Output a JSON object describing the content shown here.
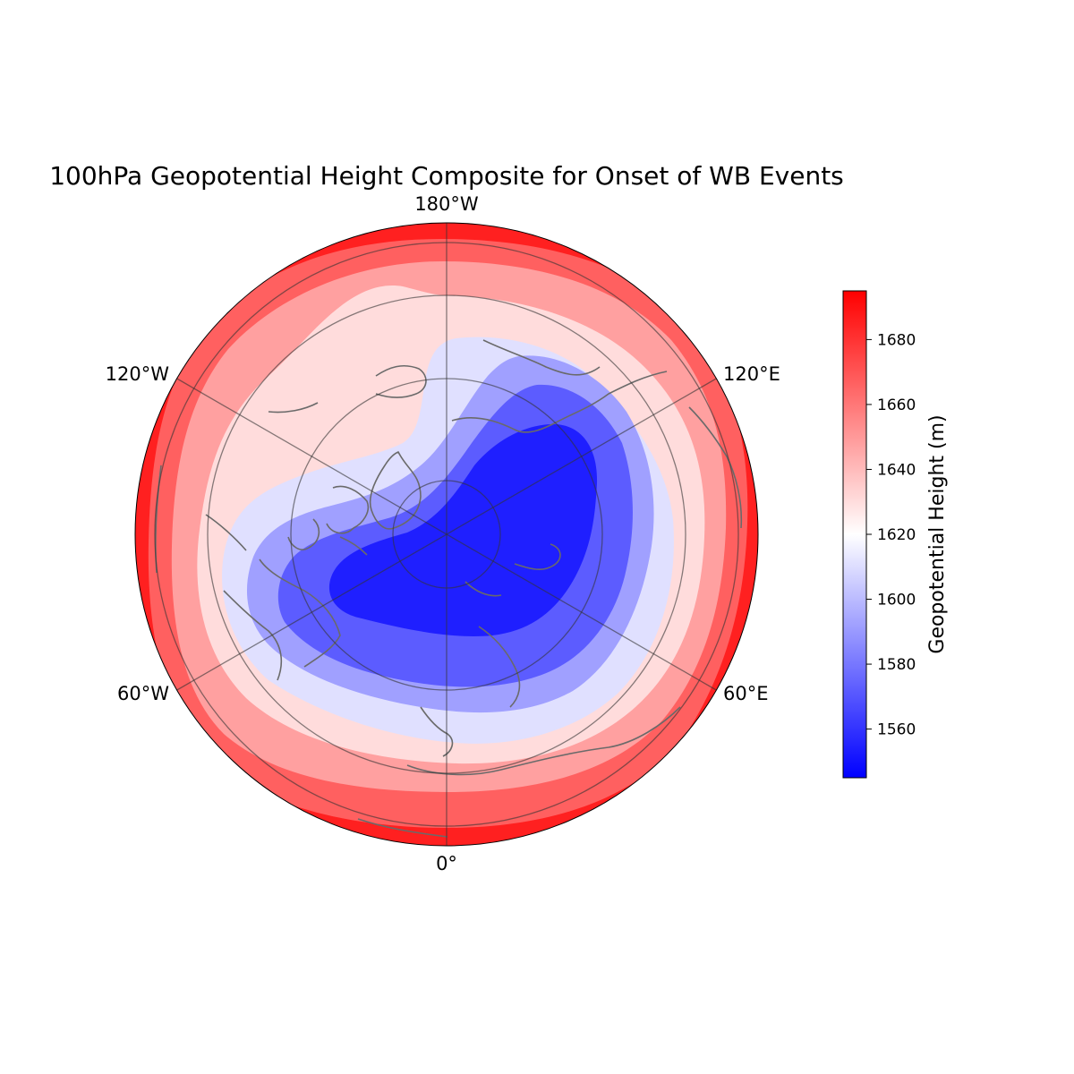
{
  "title": "100hPa Geopotential Height Composite for Onset of WB Events",
  "longitude_labels": {
    "top": "180°W",
    "bottom": "0°",
    "upper_left": "120°W",
    "upper_right": "120°E",
    "lower_left": "60°W",
    "lower_right": "60°E"
  },
  "colorbar": {
    "label": "Geopotential Height (m)",
    "colormap": "bwr",
    "range": [
      1545,
      1695
    ],
    "ticks": [
      "1560",
      "1580",
      "1600",
      "1620",
      "1640",
      "1660",
      "1680"
    ],
    "tick_values": [
      1560,
      1580,
      1600,
      1620,
      1640,
      1660,
      1680
    ],
    "endpoint_colors": {
      "low": "#0000ff",
      "mid": "#ffffff",
      "high": "#ff0000"
    }
  },
  "map": {
    "projection": "North Polar Stereographic",
    "hemisphere": "Northern",
    "coastlines": true,
    "graticule": true,
    "meridians_deg": [
      0,
      60,
      120,
      180,
      240,
      300
    ],
    "contour_levels": [
      {
        "value": 1550,
        "color": "#1f1fff"
      },
      {
        "value": 1570,
        "color": "#5c5cff"
      },
      {
        "value": 1590,
        "color": "#a0a0ff"
      },
      {
        "value": 1610,
        "color": "#e0e0ff"
      },
      {
        "value": 1630,
        "color": "#ffdcdc"
      },
      {
        "value": 1650,
        "color": "#ffa0a0"
      },
      {
        "value": 1670,
        "color": "#ff6060"
      },
      {
        "value": 1690,
        "color": "#ff2020"
      }
    ]
  }
}
